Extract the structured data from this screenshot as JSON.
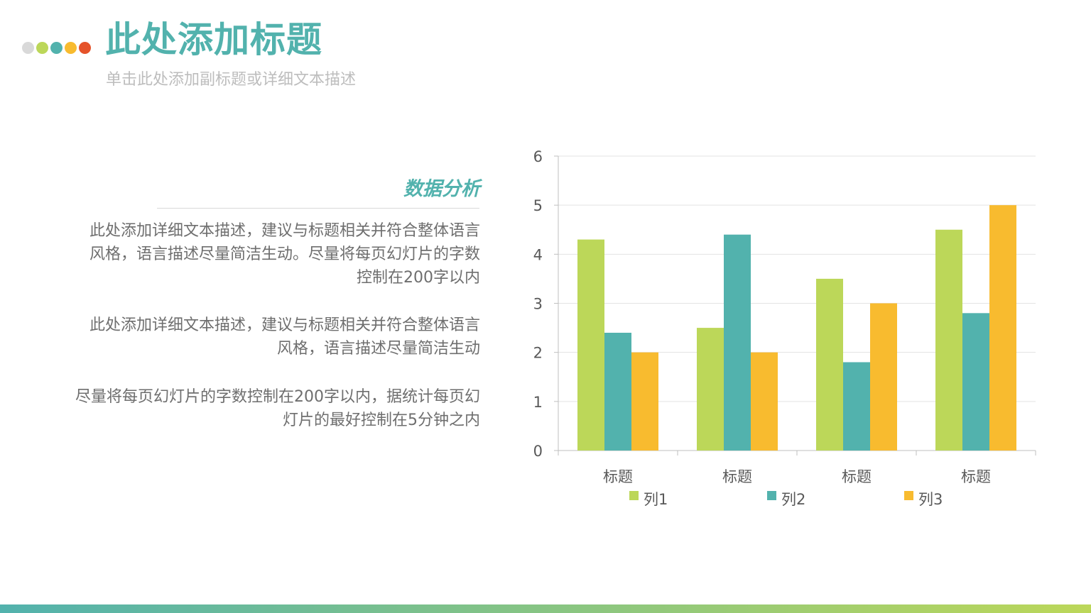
{
  "header": {
    "title": "此处添加标题",
    "subtitle": "单击此处添加副标题或详细文本描述",
    "dot_colors": [
      "#d9d9d9",
      "#bcd759",
      "#52b2ad",
      "#f8bb2f",
      "#e5532a"
    ]
  },
  "content": {
    "heading": "数据分析",
    "paragraphs": [
      {
        "lines": [
          "此处添加详细文本描述，建议与标题相关并符合整体语言",
          "风格，语言描述尽量简洁生动。尽量将每页幻灯片的字数",
          "控制在200字以内"
        ]
      },
      {
        "lines": [
          "此处添加详细文本描述，建议与标题相关并符合整体语言",
          "风格，语言描述尽量简洁生动"
        ]
      },
      {
        "lines": [
          "尽量将每页幻灯片的字数控制在200字以内，据统计每页幻",
          "灯片的最好控制在5分钟之内"
        ]
      }
    ]
  },
  "colors": {
    "accent": "#52b2ad",
    "text": "#6e6e6e",
    "subtitle": "#bdbdbd",
    "gradient_start": "#52b2ad",
    "gradient_end": "#bcd759"
  },
  "chart_data": {
    "type": "bar",
    "categories": [
      "标题",
      "标题",
      "标题",
      "标题"
    ],
    "series": [
      {
        "name": "列1",
        "values": [
          4.3,
          2.5,
          3.5,
          4.5
        ],
        "color": "#bcd759"
      },
      {
        "name": "列2",
        "values": [
          2.4,
          4.4,
          1.8,
          2.8
        ],
        "color": "#52b2ad"
      },
      {
        "name": "列3",
        "values": [
          2.0,
          2.0,
          3.0,
          5.0
        ],
        "color": "#f8bb2f"
      }
    ],
    "ylim": [
      0,
      6
    ],
    "yticks": [
      "0",
      "1",
      "2",
      "3",
      "4",
      "5",
      "6"
    ],
    "grid": true,
    "legend": "bottom",
    "title": "",
    "xlabel": "",
    "ylabel": ""
  }
}
